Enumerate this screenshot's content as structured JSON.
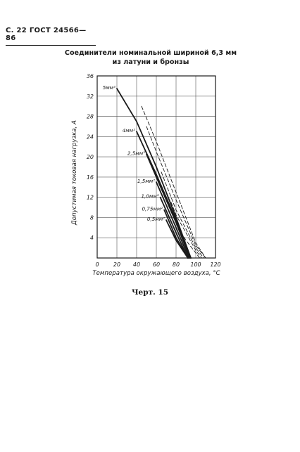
{
  "page": {
    "header": "С. 22 ГОСТ 24566—86",
    "caption": "Черт. 15"
  },
  "chart_data": {
    "type": "line",
    "title": "Соединители номинальной шириной 6,3 мм",
    "subtitle": "из латуни и бронзы",
    "xlabel": "Температура окружающего воздуха, °С",
    "ylabel": "Допустимая токовая нагрузка, А",
    "xlim": [
      0,
      120
    ],
    "ylim": [
      0,
      36
    ],
    "xticks": [
      0,
      20,
      40,
      60,
      80,
      100,
      120
    ],
    "yticks": [
      4,
      8,
      12,
      16,
      20,
      24,
      28,
      32,
      36
    ],
    "grid": true,
    "legend": "none",
    "series": [
      {
        "name": "5мм²",
        "style": "solid",
        "points": [
          [
            20,
            33.5
          ],
          [
            40,
            27
          ],
          [
            60,
            18
          ],
          [
            80,
            8
          ],
          [
            95,
            0
          ]
        ]
      },
      {
        "name": "4мм²",
        "style": "solid",
        "points": [
          [
            40,
            25
          ],
          [
            60,
            16.5
          ],
          [
            80,
            7.5
          ],
          [
            95,
            0
          ]
        ]
      },
      {
        "name": "2,5мм²",
        "style": "solid",
        "points": [
          [
            50,
            20.5
          ],
          [
            60,
            16
          ],
          [
            80,
            7
          ],
          [
            94,
            0
          ]
        ]
      },
      {
        "name": "1,5мм²",
        "style": "solid",
        "points": [
          [
            60,
            15
          ],
          [
            80,
            6
          ],
          [
            93,
            0
          ]
        ]
      },
      {
        "name": "1,0мм²",
        "style": "solid",
        "points": [
          [
            64,
            12
          ],
          [
            80,
            5
          ],
          [
            92,
            0
          ]
        ]
      },
      {
        "name": "0,75мм²",
        "style": "solid",
        "points": [
          [
            68,
            9.5
          ],
          [
            80,
            4
          ],
          [
            92,
            0
          ]
        ]
      },
      {
        "name": "0,5мм²",
        "style": "solid",
        "points": [
          [
            70,
            7.5
          ],
          [
            80,
            3.5
          ],
          [
            92,
            0
          ]
        ]
      },
      {
        "name": "",
        "style": "dashed",
        "points": [
          [
            45,
            30
          ],
          [
            60,
            23
          ],
          [
            80,
            13
          ],
          [
            100,
            3
          ],
          [
            110,
            0
          ]
        ]
      },
      {
        "name": "",
        "style": "dashed",
        "points": [
          [
            50,
            26
          ],
          [
            60,
            21
          ],
          [
            80,
            11.5
          ],
          [
            100,
            2.5
          ],
          [
            110,
            0
          ]
        ]
      },
      {
        "name": "",
        "style": "dashed",
        "points": [
          [
            65,
            17
          ],
          [
            80,
            9.5
          ],
          [
            100,
            2
          ],
          [
            108,
            0
          ]
        ]
      },
      {
        "name": "",
        "style": "dashed",
        "points": [
          [
            75,
            11
          ],
          [
            80,
            8.5
          ],
          [
            100,
            1.5
          ],
          [
            106,
            0
          ]
        ]
      },
      {
        "name": "",
        "style": "dashed",
        "points": [
          [
            82,
            6
          ],
          [
            90,
            3.5
          ],
          [
            100,
            1
          ],
          [
            104,
            0
          ]
        ]
      }
    ]
  }
}
